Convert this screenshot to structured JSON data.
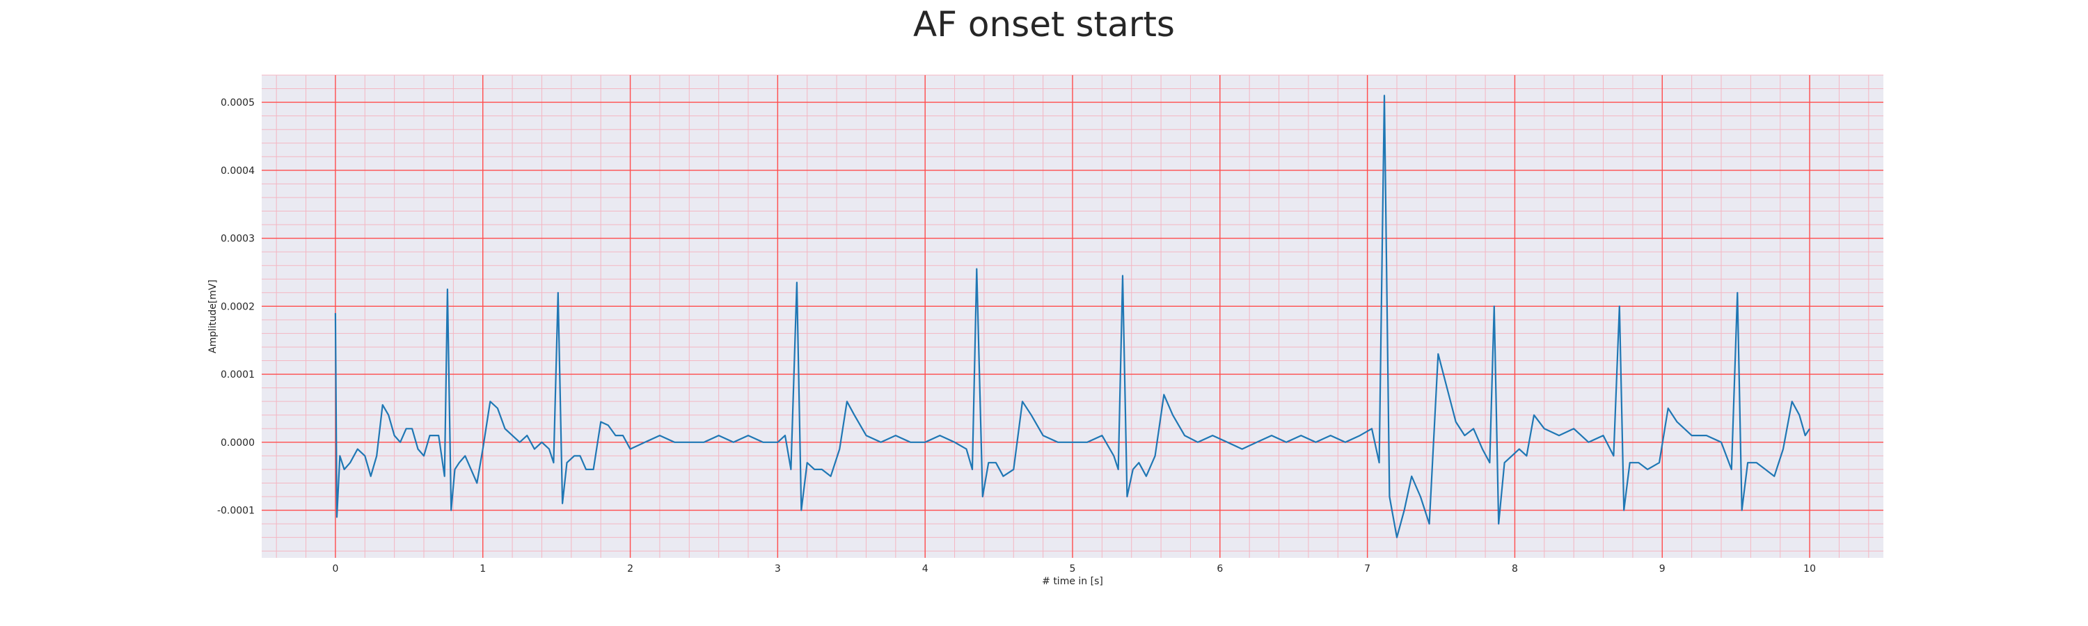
{
  "chart_data": {
    "type": "line",
    "title": "AF onset starts",
    "xlabel": "# time in [s]",
    "ylabel": "Amplitude[mV]",
    "xlim": [
      -0.5,
      10.5
    ],
    "ylim": [
      -0.00017,
      0.00054
    ],
    "x_ticks": [
      0,
      1,
      2,
      3,
      4,
      5,
      6,
      7,
      8,
      9,
      10
    ],
    "x_tick_labels": [
      "0",
      "1",
      "2",
      "3",
      "4",
      "5",
      "6",
      "7",
      "8",
      "9",
      "10"
    ],
    "y_ticks": [
      -0.0001,
      0.0,
      0.0001,
      0.0002,
      0.0003,
      0.0004,
      0.0005
    ],
    "y_tick_labels": [
      "-0.0001",
      "0.0000",
      "0.0001",
      "0.0002",
      "0.0003",
      "0.0004",
      "0.0005"
    ],
    "grid": true,
    "minor_grid": true,
    "colors": {
      "background": "#eaeaf2",
      "major_grid": "#ff4d4d",
      "minor_grid": "#f4b6c2",
      "line": "#1f77b4"
    },
    "series": [
      {
        "values": [
          [
            0.0,
            0.00019
          ],
          [
            0.01,
            -0.00011
          ],
          [
            0.03,
            -2e-05
          ],
          [
            0.06,
            -4e-05
          ],
          [
            0.1,
            -3e-05
          ],
          [
            0.15,
            -1e-05
          ],
          [
            0.2,
            -2e-05
          ],
          [
            0.24,
            -5e-05
          ],
          [
            0.28,
            -2e-05
          ],
          [
            0.32,
            5.5e-05
          ],
          [
            0.36,
            4e-05
          ],
          [
            0.4,
            1e-05
          ],
          [
            0.44,
            0.0
          ],
          [
            0.48,
            2e-05
          ],
          [
            0.52,
            2e-05
          ],
          [
            0.56,
            -1e-05
          ],
          [
            0.6,
            -2e-05
          ],
          [
            0.64,
            1e-05
          ],
          [
            0.7,
            1e-05
          ],
          [
            0.74,
            -5e-05
          ],
          [
            0.76,
            0.000225
          ],
          [
            0.785,
            -0.0001
          ],
          [
            0.81,
            -4e-05
          ],
          [
            0.84,
            -3e-05
          ],
          [
            0.88,
            -2e-05
          ],
          [
            0.92,
            -4e-05
          ],
          [
            0.96,
            -6e-05
          ],
          [
            1.0,
            -1e-05
          ],
          [
            1.05,
            6e-05
          ],
          [
            1.1,
            5e-05
          ],
          [
            1.15,
            2e-05
          ],
          [
            1.2,
            1e-05
          ],
          [
            1.25,
            0.0
          ],
          [
            1.3,
            1e-05
          ],
          [
            1.35,
            -1e-05
          ],
          [
            1.4,
            0.0
          ],
          [
            1.45,
            -1e-05
          ],
          [
            1.48,
            -3e-05
          ],
          [
            1.51,
            0.00022
          ],
          [
            1.54,
            -9e-05
          ],
          [
            1.57,
            -3e-05
          ],
          [
            1.62,
            -2e-05
          ],
          [
            1.66,
            -2e-05
          ],
          [
            1.7,
            -4e-05
          ],
          [
            1.75,
            -4e-05
          ],
          [
            1.8,
            3e-05
          ],
          [
            1.85,
            2.5e-05
          ],
          [
            1.9,
            1e-05
          ],
          [
            1.95,
            1e-05
          ],
          [
            2.0,
            -1e-05
          ],
          [
            2.1,
            0.0
          ],
          [
            2.2,
            1e-05
          ],
          [
            2.3,
            0.0
          ],
          [
            2.4,
            0.0
          ],
          [
            2.5,
            0.0
          ],
          [
            2.6,
            1e-05
          ],
          [
            2.7,
            0.0
          ],
          [
            2.8,
            1e-05
          ],
          [
            2.9,
            0.0
          ],
          [
            3.0,
            0.0
          ],
          [
            3.05,
            1e-05
          ],
          [
            3.09,
            -4e-05
          ],
          [
            3.13,
            0.000235
          ],
          [
            3.16,
            -0.0001
          ],
          [
            3.2,
            -3e-05
          ],
          [
            3.25,
            -4e-05
          ],
          [
            3.3,
            -4e-05
          ],
          [
            3.36,
            -5e-05
          ],
          [
            3.42,
            -1e-05
          ],
          [
            3.47,
            6e-05
          ],
          [
            3.52,
            4e-05
          ],
          [
            3.6,
            1e-05
          ],
          [
            3.7,
            0.0
          ],
          [
            3.8,
            1e-05
          ],
          [
            3.9,
            0.0
          ],
          [
            4.0,
            0.0
          ],
          [
            4.1,
            1e-05
          ],
          [
            4.2,
            0.0
          ],
          [
            4.28,
            -1e-05
          ],
          [
            4.32,
            -4e-05
          ],
          [
            4.35,
            0.000255
          ],
          [
            4.39,
            -8e-05
          ],
          [
            4.43,
            -3e-05
          ],
          [
            4.48,
            -3e-05
          ],
          [
            4.53,
            -5e-05
          ],
          [
            4.6,
            -4e-05
          ],
          [
            4.66,
            6e-05
          ],
          [
            4.72,
            4e-05
          ],
          [
            4.8,
            1e-05
          ],
          [
            4.9,
            0.0
          ],
          [
            5.0,
            0.0
          ],
          [
            5.1,
            0.0
          ],
          [
            5.2,
            1e-05
          ],
          [
            5.28,
            -2e-05
          ],
          [
            5.31,
            -4e-05
          ],
          [
            5.34,
            0.000245
          ],
          [
            5.37,
            -8e-05
          ],
          [
            5.41,
            -4e-05
          ],
          [
            5.45,
            -3e-05
          ],
          [
            5.5,
            -5e-05
          ],
          [
            5.56,
            -2e-05
          ],
          [
            5.62,
            7e-05
          ],
          [
            5.68,
            4e-05
          ],
          [
            5.76,
            1e-05
          ],
          [
            5.85,
            0.0
          ],
          [
            5.95,
            1e-05
          ],
          [
            6.05,
            0.0
          ],
          [
            6.15,
            -1e-05
          ],
          [
            6.25,
            0.0
          ],
          [
            6.35,
            1e-05
          ],
          [
            6.45,
            0.0
          ],
          [
            6.55,
            1e-05
          ],
          [
            6.65,
            0.0
          ],
          [
            6.75,
            1e-05
          ],
          [
            6.85,
            0.0
          ],
          [
            6.95,
            1e-05
          ],
          [
            7.03,
            2e-05
          ],
          [
            7.08,
            -3e-05
          ],
          [
            7.115,
            0.00051
          ],
          [
            7.15,
            -8e-05
          ],
          [
            7.2,
            -0.00014
          ],
          [
            7.25,
            -0.0001
          ],
          [
            7.3,
            -5e-05
          ],
          [
            7.36,
            -8e-05
          ],
          [
            7.42,
            -0.00012
          ],
          [
            7.48,
            0.00013
          ],
          [
            7.54,
            8e-05
          ],
          [
            7.6,
            3e-05
          ],
          [
            7.66,
            1e-05
          ],
          [
            7.72,
            2e-05
          ],
          [
            7.78,
            -1e-05
          ],
          [
            7.83,
            -3e-05
          ],
          [
            7.86,
            0.0002
          ],
          [
            7.89,
            -0.00012
          ],
          [
            7.93,
            -3e-05
          ],
          [
            7.98,
            -2e-05
          ],
          [
            8.03,
            -1e-05
          ],
          [
            8.08,
            -2e-05
          ],
          [
            8.13,
            4e-05
          ],
          [
            8.2,
            2e-05
          ],
          [
            8.3,
            1e-05
          ],
          [
            8.4,
            2e-05
          ],
          [
            8.5,
            0.0
          ],
          [
            8.6,
            1e-05
          ],
          [
            8.67,
            -2e-05
          ],
          [
            8.71,
            0.0002
          ],
          [
            8.74,
            -0.0001
          ],
          [
            8.78,
            -3e-05
          ],
          [
            8.84,
            -3e-05
          ],
          [
            8.9,
            -4e-05
          ],
          [
            8.98,
            -3e-05
          ],
          [
            9.04,
            5e-05
          ],
          [
            9.1,
            3e-05
          ],
          [
            9.2,
            1e-05
          ],
          [
            9.3,
            1e-05
          ],
          [
            9.4,
            0.0
          ],
          [
            9.47,
            -4e-05
          ],
          [
            9.51,
            0.00022
          ],
          [
            9.54,
            -0.0001
          ],
          [
            9.58,
            -3e-05
          ],
          [
            9.64,
            -3e-05
          ],
          [
            9.7,
            -4e-05
          ],
          [
            9.76,
            -5e-05
          ],
          [
            9.82,
            -1e-05
          ],
          [
            9.88,
            6e-05
          ],
          [
            9.93,
            4e-05
          ],
          [
            9.97,
            1e-05
          ],
          [
            10.0,
            2e-05
          ]
        ]
      }
    ]
  }
}
